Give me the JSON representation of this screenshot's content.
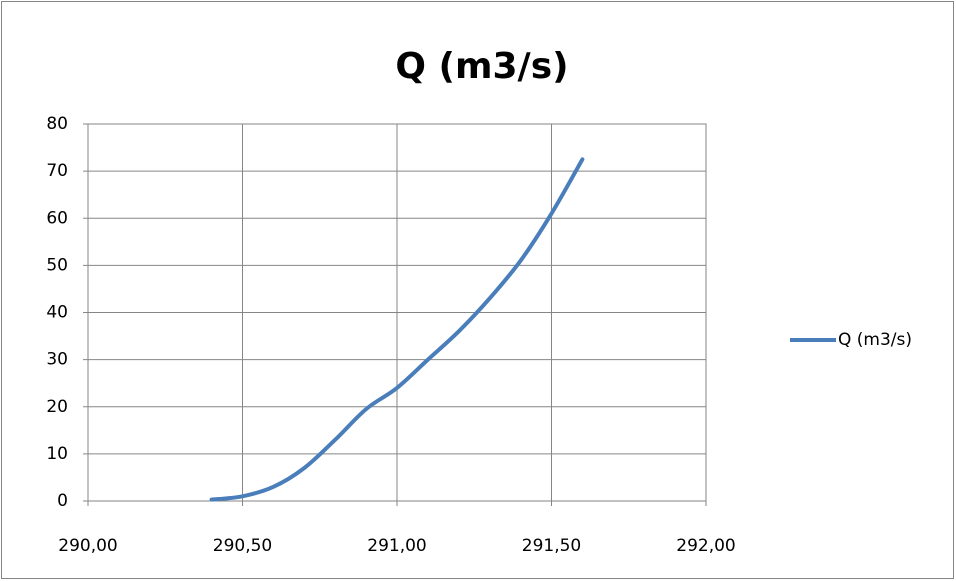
{
  "chart_data": {
    "type": "line",
    "title": "Q (m3/s)",
    "x": [
      290.4,
      290.5,
      290.6,
      290.7,
      290.8,
      290.9,
      291.0,
      291.1,
      291.2,
      291.3,
      291.4,
      291.5,
      291.6
    ],
    "series": [
      {
        "name": "Q (m3/s)",
        "color": "#4a7ebb",
        "values": [
          0.3,
          1,
          3,
          7,
          13,
          19.5,
          24,
          30,
          36,
          43,
          51,
          61,
          72.5
        ]
      }
    ],
    "xlim": [
      290,
      292
    ],
    "xticks": [
      {
        "value": 290,
        "label": "290,00"
      },
      {
        "value": 290.5,
        "label": "290,50"
      },
      {
        "value": 291,
        "label": "291,00"
      },
      {
        "value": 291.5,
        "label": "291,50"
      },
      {
        "value": 292,
        "label": "292,00"
      }
    ],
    "ylim": [
      0,
      80
    ],
    "yticks": [
      0,
      10,
      20,
      30,
      40,
      50,
      60,
      70,
      80
    ],
    "grid": true,
    "legend": "right"
  }
}
